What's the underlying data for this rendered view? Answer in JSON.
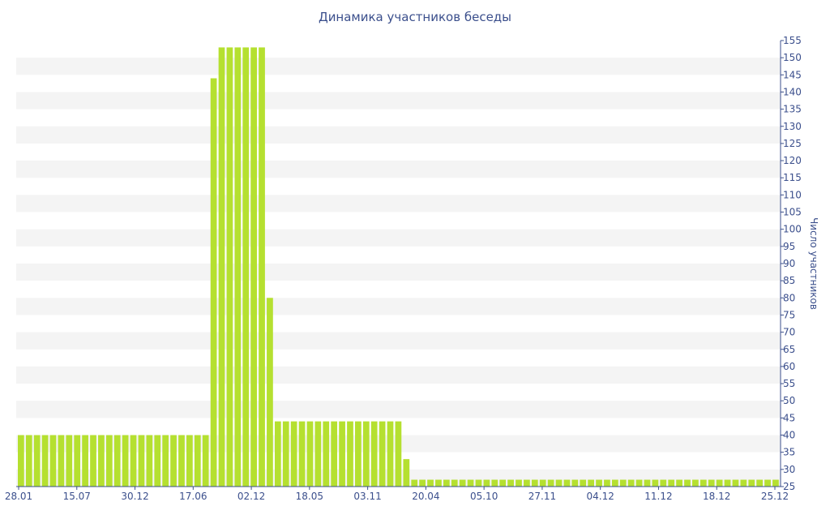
{
  "chart_data": {
    "type": "bar",
    "title": "Динамика участников беседы",
    "xlabel": "",
    "ylabel": "Число участников",
    "ylim": [
      25,
      155
    ],
    "y_ticks": [
      25,
      30,
      35,
      40,
      45,
      50,
      55,
      60,
      65,
      70,
      75,
      80,
      85,
      90,
      95,
      100,
      105,
      110,
      115,
      120,
      125,
      130,
      135,
      140,
      145,
      150,
      155
    ],
    "y_axis_side": "right",
    "x_tick_labels": [
      "28.01",
      "15.07",
      "30.12",
      "17.06",
      "02.12",
      "18.05",
      "03.11",
      "20.04",
      "05.10",
      "27.11",
      "04.12",
      "11.12",
      "18.12",
      "25.12"
    ],
    "bar_color": "#b5e030",
    "grid": "horizontal alternating bands",
    "values": [
      40,
      40,
      40,
      40,
      40,
      40,
      40,
      40,
      40,
      40,
      40,
      40,
      40,
      40,
      40,
      40,
      40,
      40,
      40,
      40,
      40,
      40,
      40,
      40,
      144,
      153,
      153,
      153,
      153,
      153,
      153,
      80,
      44,
      44,
      44,
      44,
      44,
      44,
      44,
      44,
      44,
      44,
      44,
      44,
      44,
      44,
      44,
      44,
      33,
      27,
      27,
      27,
      27,
      27,
      27,
      27,
      27,
      27,
      27,
      27,
      27,
      27,
      27,
      27,
      27,
      27,
      27,
      27,
      27,
      27,
      27,
      27,
      27,
      27,
      27,
      27,
      27,
      27,
      27,
      27,
      27,
      27,
      27,
      27,
      27,
      27,
      27,
      27,
      27,
      27,
      27,
      27,
      27,
      27,
      27
    ]
  }
}
